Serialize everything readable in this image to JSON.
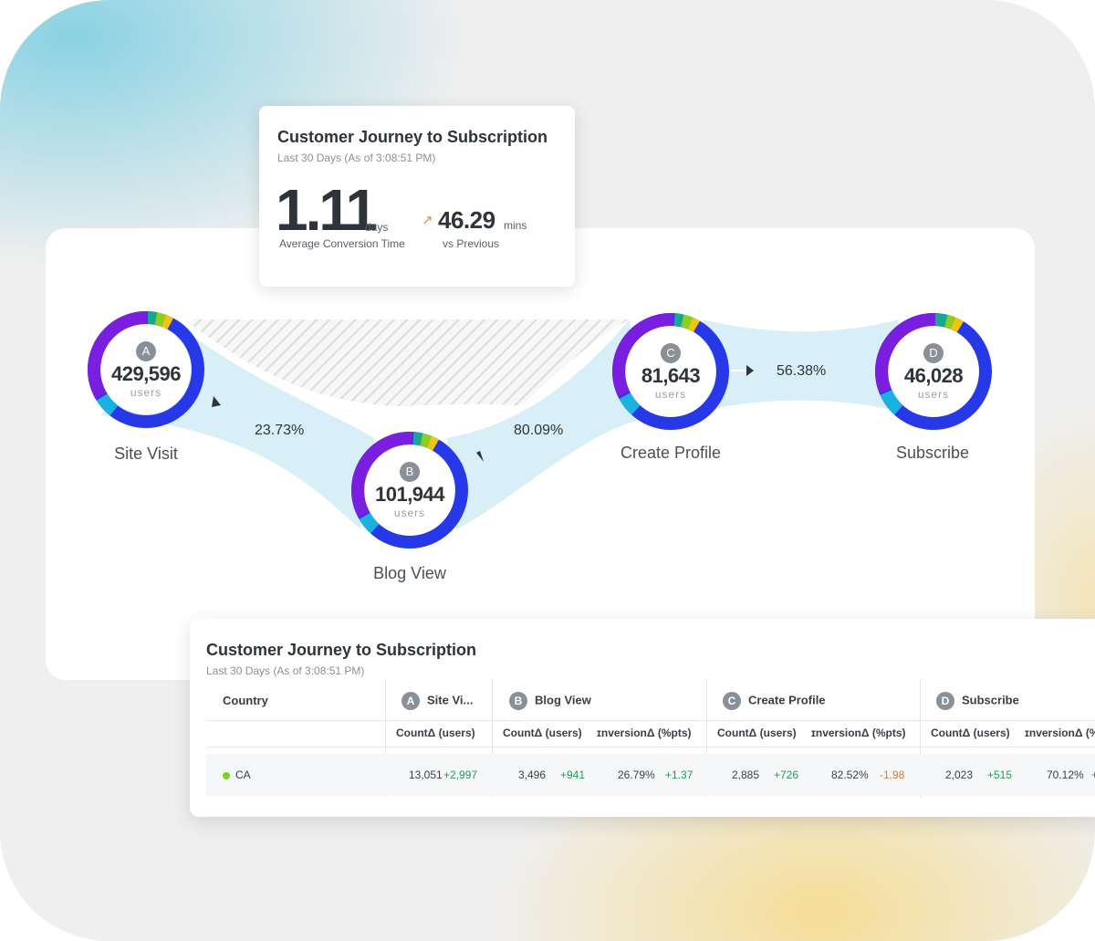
{
  "colors": {
    "ring": [
      "#7a1fe0",
      "#2638e8",
      "#1ab0e0",
      "#18a890",
      "#8ccf1e",
      "#f2c40d"
    ],
    "flow": "#d9eff8",
    "hatch": "#d7d7d7",
    "positive": "#1f9d55",
    "negative": "#e0792c",
    "country_dot": "#7ccf1e"
  },
  "kpi_card": {
    "title": "Customer Journey to Subscription",
    "subtitle": "Last 30 Days (As of 3:08:51 PM)",
    "main_value": "1.11",
    "main_unit": "days",
    "main_label": "Average Conversion Time",
    "delta_icon": "arrow-up-right-icon",
    "delta_value": "46.29",
    "delta_unit": "mins",
    "delta_label": "vs Previous"
  },
  "journey": {
    "steps": [
      {
        "letter": "A",
        "count": "429,596",
        "unit": "users",
        "label": "Site Visit"
      },
      {
        "letter": "B",
        "count": "101,944",
        "unit": "users",
        "label": "Blog View"
      },
      {
        "letter": "C",
        "count": "81,643",
        "unit": "users",
        "label": "Create Profile"
      },
      {
        "letter": "D",
        "count": "46,028",
        "unit": "users",
        "label": "Subscribe"
      }
    ],
    "conversions": [
      "23.73%",
      "80.09%",
      "56.38%"
    ]
  },
  "table_card": {
    "title": "Customer Journey to Subscription",
    "subtitle": "Last 30 Days (As of 3:08:51 PM)",
    "country_header": "Country",
    "groups": [
      {
        "letter": "A",
        "name": "Site Vi..."
      },
      {
        "letter": "B",
        "name": "Blog View"
      },
      {
        "letter": "C",
        "name": "Create Profile"
      },
      {
        "letter": "D",
        "name": "Subscribe"
      }
    ],
    "subheaders": {
      "count": "CountΔ (users)",
      "conversion": "ɪnversionΔ (%pts)",
      "conversion_cut": "ɪnversionΔ (%"
    },
    "rows": [
      {
        "country": "CA",
        "a_count": "13,051",
        "a_count_delta": "+2,997",
        "b_count": "3,496",
        "b_count_delta": "+941",
        "b_conv": "26.79%",
        "b_conv_delta": "+1.37",
        "c_count": "2,885",
        "c_count_delta": "+726",
        "c_conv": "82.52%",
        "c_conv_delta": "-1.98",
        "d_count": "2,023",
        "d_count_delta": "+515",
        "d_conv": "70.12%",
        "d_conv_delta": "+"
      }
    ]
  }
}
